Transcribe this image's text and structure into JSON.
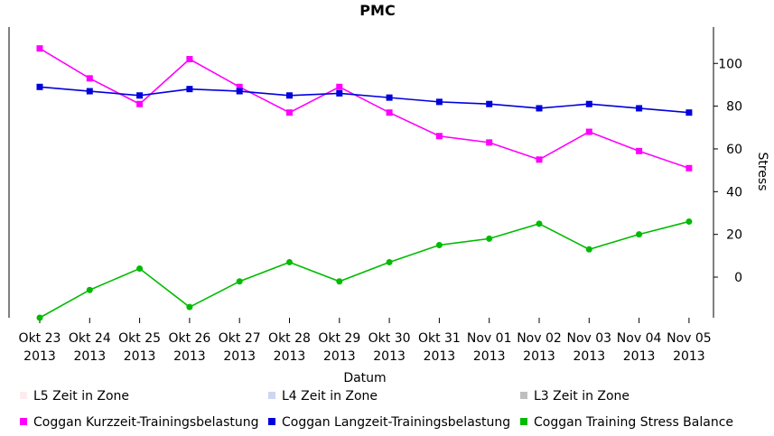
{
  "chart_data": {
    "type": "line",
    "title": "PMC",
    "xlabel": "Datum",
    "ylabel": "Stress",
    "ylim": [
      -19,
      117
    ],
    "yticks": [
      0,
      20,
      40,
      60,
      80,
      100
    ],
    "categories": [
      "Okt 23 2013",
      "Okt 24 2013",
      "Okt 25 2013",
      "Okt 26 2013",
      "Okt 27 2013",
      "Okt 28 2013",
      "Okt 29 2013",
      "Okt 30 2013",
      "Okt 31 2013",
      "Nov 01 2013",
      "Nov 02 2013",
      "Nov 03 2013",
      "Nov 04 2013",
      "Nov 05 2013"
    ],
    "series": [
      {
        "name": "Coggan Kurzzeit-Trainingsbelastung",
        "color": "#ff00ff",
        "marker": "square",
        "values": [
          107,
          93,
          81,
          102,
          89,
          77,
          89,
          77,
          66,
          63,
          55,
          68,
          59,
          51
        ]
      },
      {
        "name": "Coggan Langzeit-Trainingsbelastung",
        "color": "#0000dd",
        "marker": "square",
        "values": [
          89,
          87,
          85,
          88,
          87,
          85,
          86,
          84,
          82,
          81,
          79,
          81,
          79,
          77
        ]
      },
      {
        "name": "Coggan Training Stress Balance",
        "color": "#00bb00",
        "marker": "circle",
        "values": [
          -19,
          -6,
          4,
          -14,
          -2,
          7,
          -2,
          7,
          15,
          18,
          25,
          13,
          20,
          26
        ]
      }
    ],
    "legend": [
      {
        "label": "L5 Zeit in Zone",
        "color": "#fdecef"
      },
      {
        "label": "L4 Zeit in Zone",
        "color": "#cfd6f2"
      },
      {
        "label": "L3 Zeit in Zone",
        "color": "#bfbfbf"
      },
      {
        "label": "Coggan Kurzzeit-Trainingsbelastung",
        "color": "#ff00ff"
      },
      {
        "label": "Coggan Langzeit-Trainingsbelastung",
        "color": "#0000dd"
      },
      {
        "label": "Coggan Training Stress Balance",
        "color": "#00bb00"
      }
    ],
    "legend_position": "bottom"
  }
}
